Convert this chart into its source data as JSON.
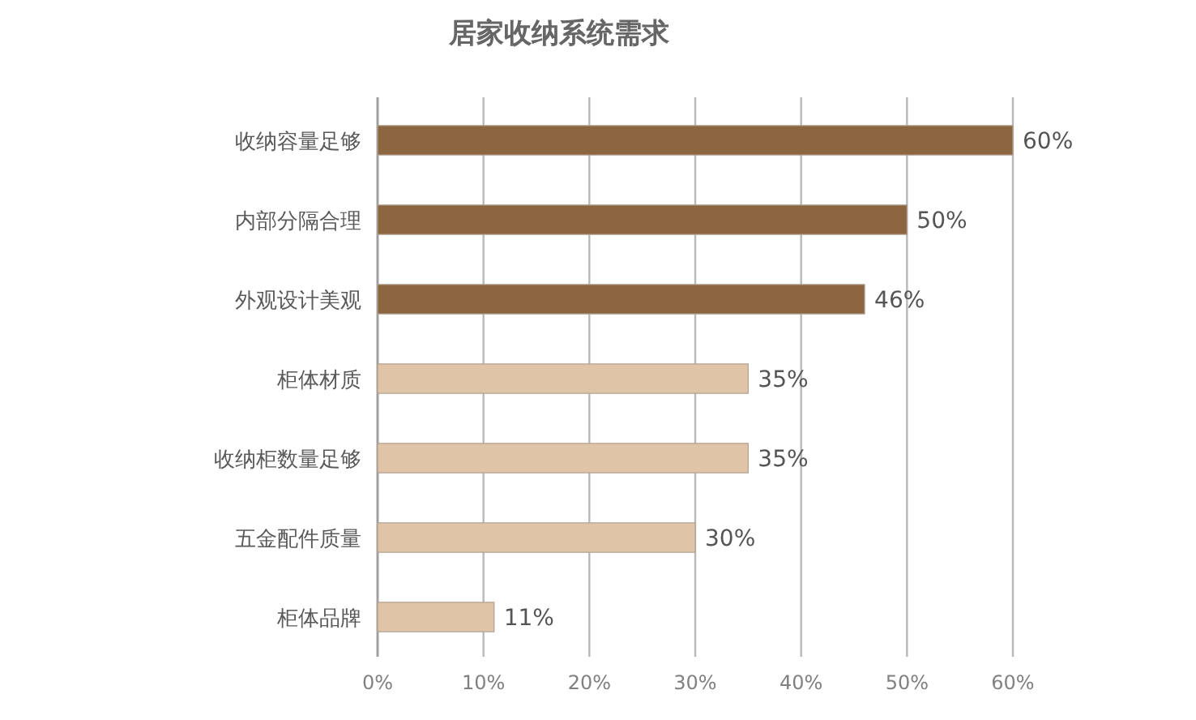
{
  "chart_data": {
    "type": "bar",
    "orientation": "horizontal",
    "title": "居家收纳系统需求",
    "categories": [
      "收纳容量足够",
      "内部分隔合理",
      "外观设计美观",
      "柜体材质",
      "收纳柜数量足够",
      "五金配件质量",
      "柜体品牌"
    ],
    "values": [
      60,
      50,
      46,
      35,
      35,
      30,
      11
    ],
    "colors": [
      "#8c6640",
      "#8c6640",
      "#8c6640",
      "#e0c4a8",
      "#e0c4a8",
      "#e0c4a8",
      "#e0c4a8"
    ],
    "value_labels": [
      "60%",
      "50%",
      "46%",
      "35%",
      "35%",
      "30%",
      "11%"
    ],
    "xlim": [
      0,
      60
    ],
    "xticks": [
      {
        "value": 0,
        "label": "0%"
      },
      {
        "value": 10,
        "label": "10%"
      },
      {
        "value": 20,
        "label": "20%"
      },
      {
        "value": 30,
        "label": "30%"
      },
      {
        "value": 40,
        "label": "40%"
      },
      {
        "value": 50,
        "label": "50%"
      },
      {
        "value": 60,
        "label": "60%"
      }
    ],
    "grid": "x"
  }
}
